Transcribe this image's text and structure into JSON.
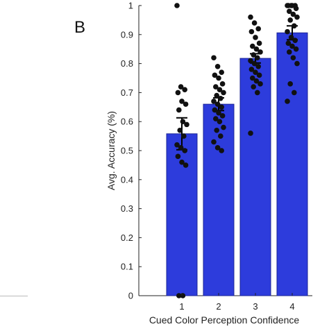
{
  "panel_label": "B",
  "chart_data": {
    "type": "bar",
    "categories": [
      "1",
      "2",
      "3",
      "4"
    ],
    "values": [
      0.558,
      0.66,
      0.818,
      0.906
    ],
    "error": [
      0.055,
      0.022,
      0.016,
      0.024
    ],
    "points": [
      [
        1.0,
        0.72,
        0.71,
        0.7,
        0.67,
        0.66,
        0.64,
        0.6,
        0.59,
        0.57,
        0.55,
        0.52,
        0.51,
        0.5,
        0.48,
        0.46,
        0.45,
        0.0,
        0.0
      ],
      [
        0.82,
        0.79,
        0.77,
        0.76,
        0.75,
        0.73,
        0.72,
        0.71,
        0.7,
        0.69,
        0.68,
        0.67,
        0.66,
        0.65,
        0.64,
        0.63,
        0.62,
        0.61,
        0.6,
        0.58,
        0.57,
        0.55,
        0.53,
        0.51,
        0.5
      ],
      [
        0.96,
        0.94,
        0.92,
        0.91,
        0.89,
        0.87,
        0.86,
        0.85,
        0.84,
        0.83,
        0.82,
        0.81,
        0.8,
        0.79,
        0.78,
        0.77,
        0.76,
        0.75,
        0.74,
        0.73,
        0.72,
        0.7,
        0.56
      ],
      [
        1.0,
        1.0,
        1.0,
        1.0,
        1.0,
        0.99,
        0.98,
        0.97,
        0.96,
        0.95,
        0.93,
        0.91,
        0.89,
        0.88,
        0.87,
        0.86,
        0.85,
        0.84,
        0.82,
        0.8,
        0.73,
        0.7,
        0.67
      ]
    ],
    "yticks": [
      "0",
      "0.1",
      "0.2",
      "0.3",
      "0.4",
      "0.5",
      "0.6",
      "0.7",
      "0.8",
      "0.9",
      "1"
    ],
    "xlabel": "Cued Color Perception Confidence",
    "ylabel": "Avg. Accuracy (%)",
    "ylim": [
      0,
      1
    ],
    "grid": false,
    "colors": {
      "bar": "#2d3cdc",
      "bar_edge": "#1b2496",
      "points": "#111111"
    }
  }
}
